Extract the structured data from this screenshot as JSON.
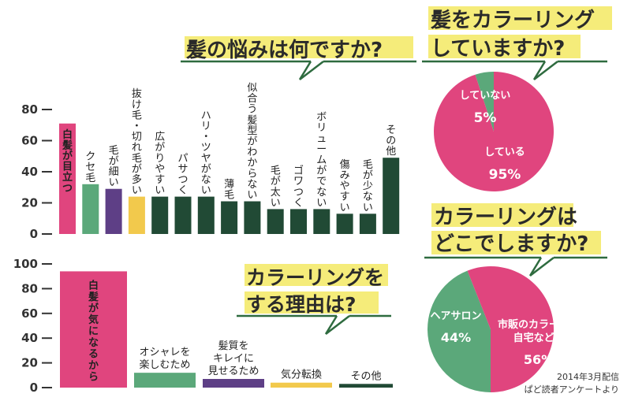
{
  "titles": {
    "main_question": "髪の悩みは何ですか?",
    "reasons_question_line1": "カラーリングを",
    "reasons_question_line2": "する理由は?",
    "coloring_question_line1": "髪をカラーリング",
    "coloring_question_line2": "していますか?",
    "where_question_line1": "カラーリングは",
    "where_question_line2": "どこでしますか?"
  },
  "credit": {
    "line1": "2014年3月配信",
    "line2": "ぱど読者アンケートより"
  },
  "colors": {
    "pink": "#e0457e",
    "green": "#5ba87a",
    "purple": "#5e3f86",
    "yellow": "#f2c94c",
    "dark_green": "#214a35",
    "highlight": "#f5ec7a"
  },
  "chart_data": [
    {
      "id": "hair-worries",
      "type": "bar",
      "ylim": [
        0,
        80
      ],
      "yticks": [
        0,
        20,
        40,
        60,
        80
      ],
      "categories": [
        "白髪が目立つ",
        "クセ毛",
        "毛が細い",
        "抜け毛・切れ毛が多い",
        "広がりやすい",
        "パサつく",
        "ハリ・ツヤがない",
        "薄毛",
        "似合う髪型がわからない",
        "毛が太い",
        "ゴワつく",
        "ボリュームがでない",
        "傷みやすい",
        "毛が少ない",
        "その他"
      ],
      "values": [
        71,
        32,
        29,
        24,
        24,
        24,
        24,
        21,
        21,
        16,
        16,
        16,
        13,
        13,
        49
      ],
      "bar_colors": [
        "#e0457e",
        "#5ba87a",
        "#5e3f86",
        "#f2c94c",
        "#214a35",
        "#214a35",
        "#214a35",
        "#214a35",
        "#214a35",
        "#214a35",
        "#214a35",
        "#214a35",
        "#214a35",
        "#214a35",
        "#214a35"
      ]
    },
    {
      "id": "coloring-reasons",
      "type": "bar",
      "ylim": [
        0,
        100
      ],
      "yticks": [
        0,
        20,
        40,
        60,
        80,
        100
      ],
      "categories": [
        "白髪が気になるから",
        "オシャレを楽しむため",
        "髪質をキレイに見せるため",
        "気分転換",
        "その他"
      ],
      "category_lines": [
        [
          "白髪が気になるから"
        ],
        [
          "オシャレを",
          "楽しむため"
        ],
        [
          "髪質を",
          "キレイに",
          "見せるため"
        ],
        [
          "気分転換"
        ],
        [
          "その他"
        ]
      ],
      "values": [
        94,
        12,
        7,
        4,
        3
      ],
      "bar_colors": [
        "#e0457e",
        "#5ba87a",
        "#5e3f86",
        "#f2c94c",
        "#214a35"
      ]
    },
    {
      "id": "doing-coloring",
      "type": "pie",
      "labels": [
        "していない",
        "している"
      ],
      "values": [
        5,
        95
      ],
      "value_labels": [
        "5%",
        "95%"
      ],
      "colors": [
        "#5ba87a",
        "#e0457e"
      ]
    },
    {
      "id": "coloring-where",
      "type": "pie",
      "labels": [
        "ヘアサロン",
        "市販のカラー剤で自宅などで"
      ],
      "label_lines": [
        [
          "ヘアサロン"
        ],
        [
          "市販のカラー剤で",
          "自宅などで"
        ]
      ],
      "values": [
        44,
        56
      ],
      "value_labels": [
        "44%",
        "56%"
      ],
      "colors": [
        "#5ba87a",
        "#e0457e"
      ]
    }
  ]
}
